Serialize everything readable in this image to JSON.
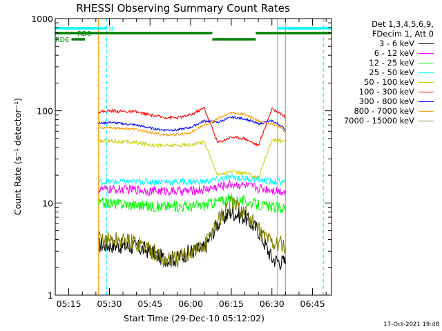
{
  "chart_data": {
    "type": "line",
    "title": "RHESSI Observing Summary Count Rates",
    "xlabel": "Start Time (29-Dec-10 05:12:02)",
    "ylabel": "Count Rate (s⁻¹ detector⁻¹)",
    "y_scale": "log",
    "ylim": [
      1,
      1000
    ],
    "xlim": [
      "05:10",
      "06:52"
    ],
    "x_ticks": [
      "05:15",
      "05:30",
      "05:45",
      "06:00",
      "06:15",
      "06:30",
      "06:45"
    ],
    "y_ticks": [
      "1",
      "10",
      "100",
      "1000"
    ],
    "legend_header": [
      "Det 1,3,4,5,6,9,",
      "FDecim 1, Att 0"
    ],
    "legend_position": "right",
    "series": [
      {
        "name": "3 - 6 keV",
        "color": "#000000",
        "x": [
          "05:26",
          "05:30",
          "05:40",
          "05:45",
          "05:50",
          "05:55",
          "06:00",
          "06:05",
          "06:10",
          "06:15",
          "06:20",
          "06:25",
          "06:30",
          "06:33",
          "06:35"
        ],
        "values": [
          3.5,
          3.5,
          3.3,
          3.0,
          2.5,
          2.5,
          3.0,
          3.2,
          6,
          8,
          7,
          5,
          2.5,
          2.3,
          2.3
        ]
      },
      {
        "name": "6 - 12 keV",
        "color": "#ff00ff",
        "x": [
          "05:26",
          "05:30",
          "05:40",
          "05:45",
          "05:50",
          "05:55",
          "06:00",
          "06:05",
          "06:10",
          "06:15",
          "06:20",
          "06:25",
          "06:30",
          "06:33",
          "06:35"
        ],
        "values": [
          14,
          14,
          14,
          13.5,
          13.5,
          13.5,
          13.5,
          14,
          15,
          16,
          15.5,
          14.5,
          14,
          13.5,
          13.5
        ]
      },
      {
        "name": "12 - 25 keV",
        "color": "#00ff00",
        "x": [
          "05:26",
          "05:30",
          "05:40",
          "05:45",
          "05:50",
          "05:55",
          "06:00",
          "06:05",
          "06:10",
          "06:15",
          "06:20",
          "06:25",
          "06:30",
          "06:33",
          "06:35"
        ],
        "values": [
          10,
          10,
          9.5,
          9.2,
          9.2,
          9.2,
          9.2,
          9.5,
          10.5,
          11,
          10.5,
          9.5,
          9.0,
          8.8,
          8.8
        ]
      },
      {
        "name": "25 - 50 keV",
        "color": "#00ffff",
        "x": [
          "05:26",
          "05:30",
          "05:40",
          "05:45",
          "05:50",
          "05:55",
          "06:00",
          "06:05",
          "06:10",
          "06:15",
          "06:20",
          "06:25",
          "06:30",
          "06:33",
          "06:35"
        ],
        "values": [
          17,
          17,
          17,
          17,
          17,
          17,
          17,
          17,
          18,
          19,
          18.5,
          18,
          17,
          17,
          17
        ]
      },
      {
        "name": "50 - 100 keV",
        "color": "#cccc00",
        "x": [
          "05:26",
          "05:30",
          "05:40",
          "05:45",
          "05:50",
          "05:55",
          "06:00",
          "06:05",
          "06:10",
          "06:15",
          "06:20",
          "06:25",
          "06:30",
          "06:33",
          "06:35"
        ],
        "values": [
          47,
          47,
          45,
          43,
          42,
          42,
          43,
          46,
          20,
          22,
          21,
          19,
          48,
          48,
          45
        ]
      },
      {
        "name": "100 - 300 keV",
        "color": "#ff0000",
        "x": [
          "05:26",
          "05:30",
          "05:40",
          "05:45",
          "05:50",
          "05:55",
          "06:00",
          "06:05",
          "06:10",
          "06:15",
          "06:20",
          "06:25",
          "06:30",
          "06:33",
          "06:35"
        ],
        "values": [
          97,
          100,
          97,
          90,
          85,
          84,
          90,
          108,
          45,
          52,
          50,
          42,
          105,
          95,
          85
        ]
      },
      {
        "name": "300 - 800 keV",
        "color": "#0000ff",
        "x": [
          "05:26",
          "05:30",
          "05:40",
          "05:45",
          "05:50",
          "05:55",
          "06:00",
          "06:05",
          "06:10",
          "06:15",
          "06:20",
          "06:25",
          "06:30",
          "06:33",
          "06:35"
        ],
        "values": [
          73,
          75,
          70,
          65,
          62,
          62,
          66,
          78,
          75,
          85,
          82,
          72,
          78,
          70,
          62
        ]
      },
      {
        "name": "800 - 7000 keV",
        "color": "#ff9900",
        "x": [
          "05:26",
          "05:30",
          "05:40",
          "05:45",
          "05:50",
          "05:55",
          "06:00",
          "06:05",
          "06:10",
          "06:15",
          "06:20",
          "06:25",
          "06:30",
          "06:33",
          "06:35"
        ],
        "values": [
          65,
          66,
          63,
          58,
          55,
          55,
          58,
          70,
          82,
          95,
          92,
          78,
          72,
          66,
          58
        ]
      },
      {
        "name": "7000 - 15000 keV",
        "color": "#808000",
        "x": [
          "05:26",
          "05:30",
          "05:40",
          "05:45",
          "05:50",
          "05:55",
          "06:00",
          "06:05",
          "06:10",
          "06:15",
          "06:20",
          "06:25",
          "06:30",
          "06:33",
          "06:35"
        ],
        "values": [
          4,
          4,
          3.7,
          3.2,
          2.4,
          2.4,
          3.0,
          3.3,
          6.5,
          9.5,
          8,
          5,
          3.8,
          3.5,
          3.5
        ]
      }
    ],
    "status_bars": [
      {
        "label": "N",
        "color": "#00ffff",
        "segments": [
          [
            "05:10",
            "05:29"
          ],
          [
            "06:32",
            "06:52"
          ]
        ]
      },
      {
        "label": "RD0",
        "color": "#008000",
        "segments": [
          [
            "05:10",
            "06:08"
          ],
          [
            "06:08",
            "06:24"
          ],
          [
            "06:24",
            "06:52"
          ]
        ]
      },
      {
        "label": "RD6",
        "color": "#008000",
        "segments": [
          [
            "05:16",
            "05:21"
          ]
        ]
      }
    ],
    "vertical_lines": [
      {
        "color": "#00ffff",
        "style": "solid",
        "x": "05:10"
      },
      {
        "color": "#00ffff",
        "style": "dashed",
        "x": "05:29"
      },
      {
        "color": "#00ffff",
        "style": "solid",
        "x": "06:32"
      },
      {
        "color": "#00ffff",
        "style": "dashed",
        "x": "06:49"
      },
      {
        "color": "#ff9900",
        "style": "solid",
        "x": "05:26"
      },
      {
        "color": "#ff9900",
        "style": "solid",
        "x": "06:35"
      }
    ]
  },
  "footer": {
    "timestamp": "17-Oct-2021 19:48"
  }
}
